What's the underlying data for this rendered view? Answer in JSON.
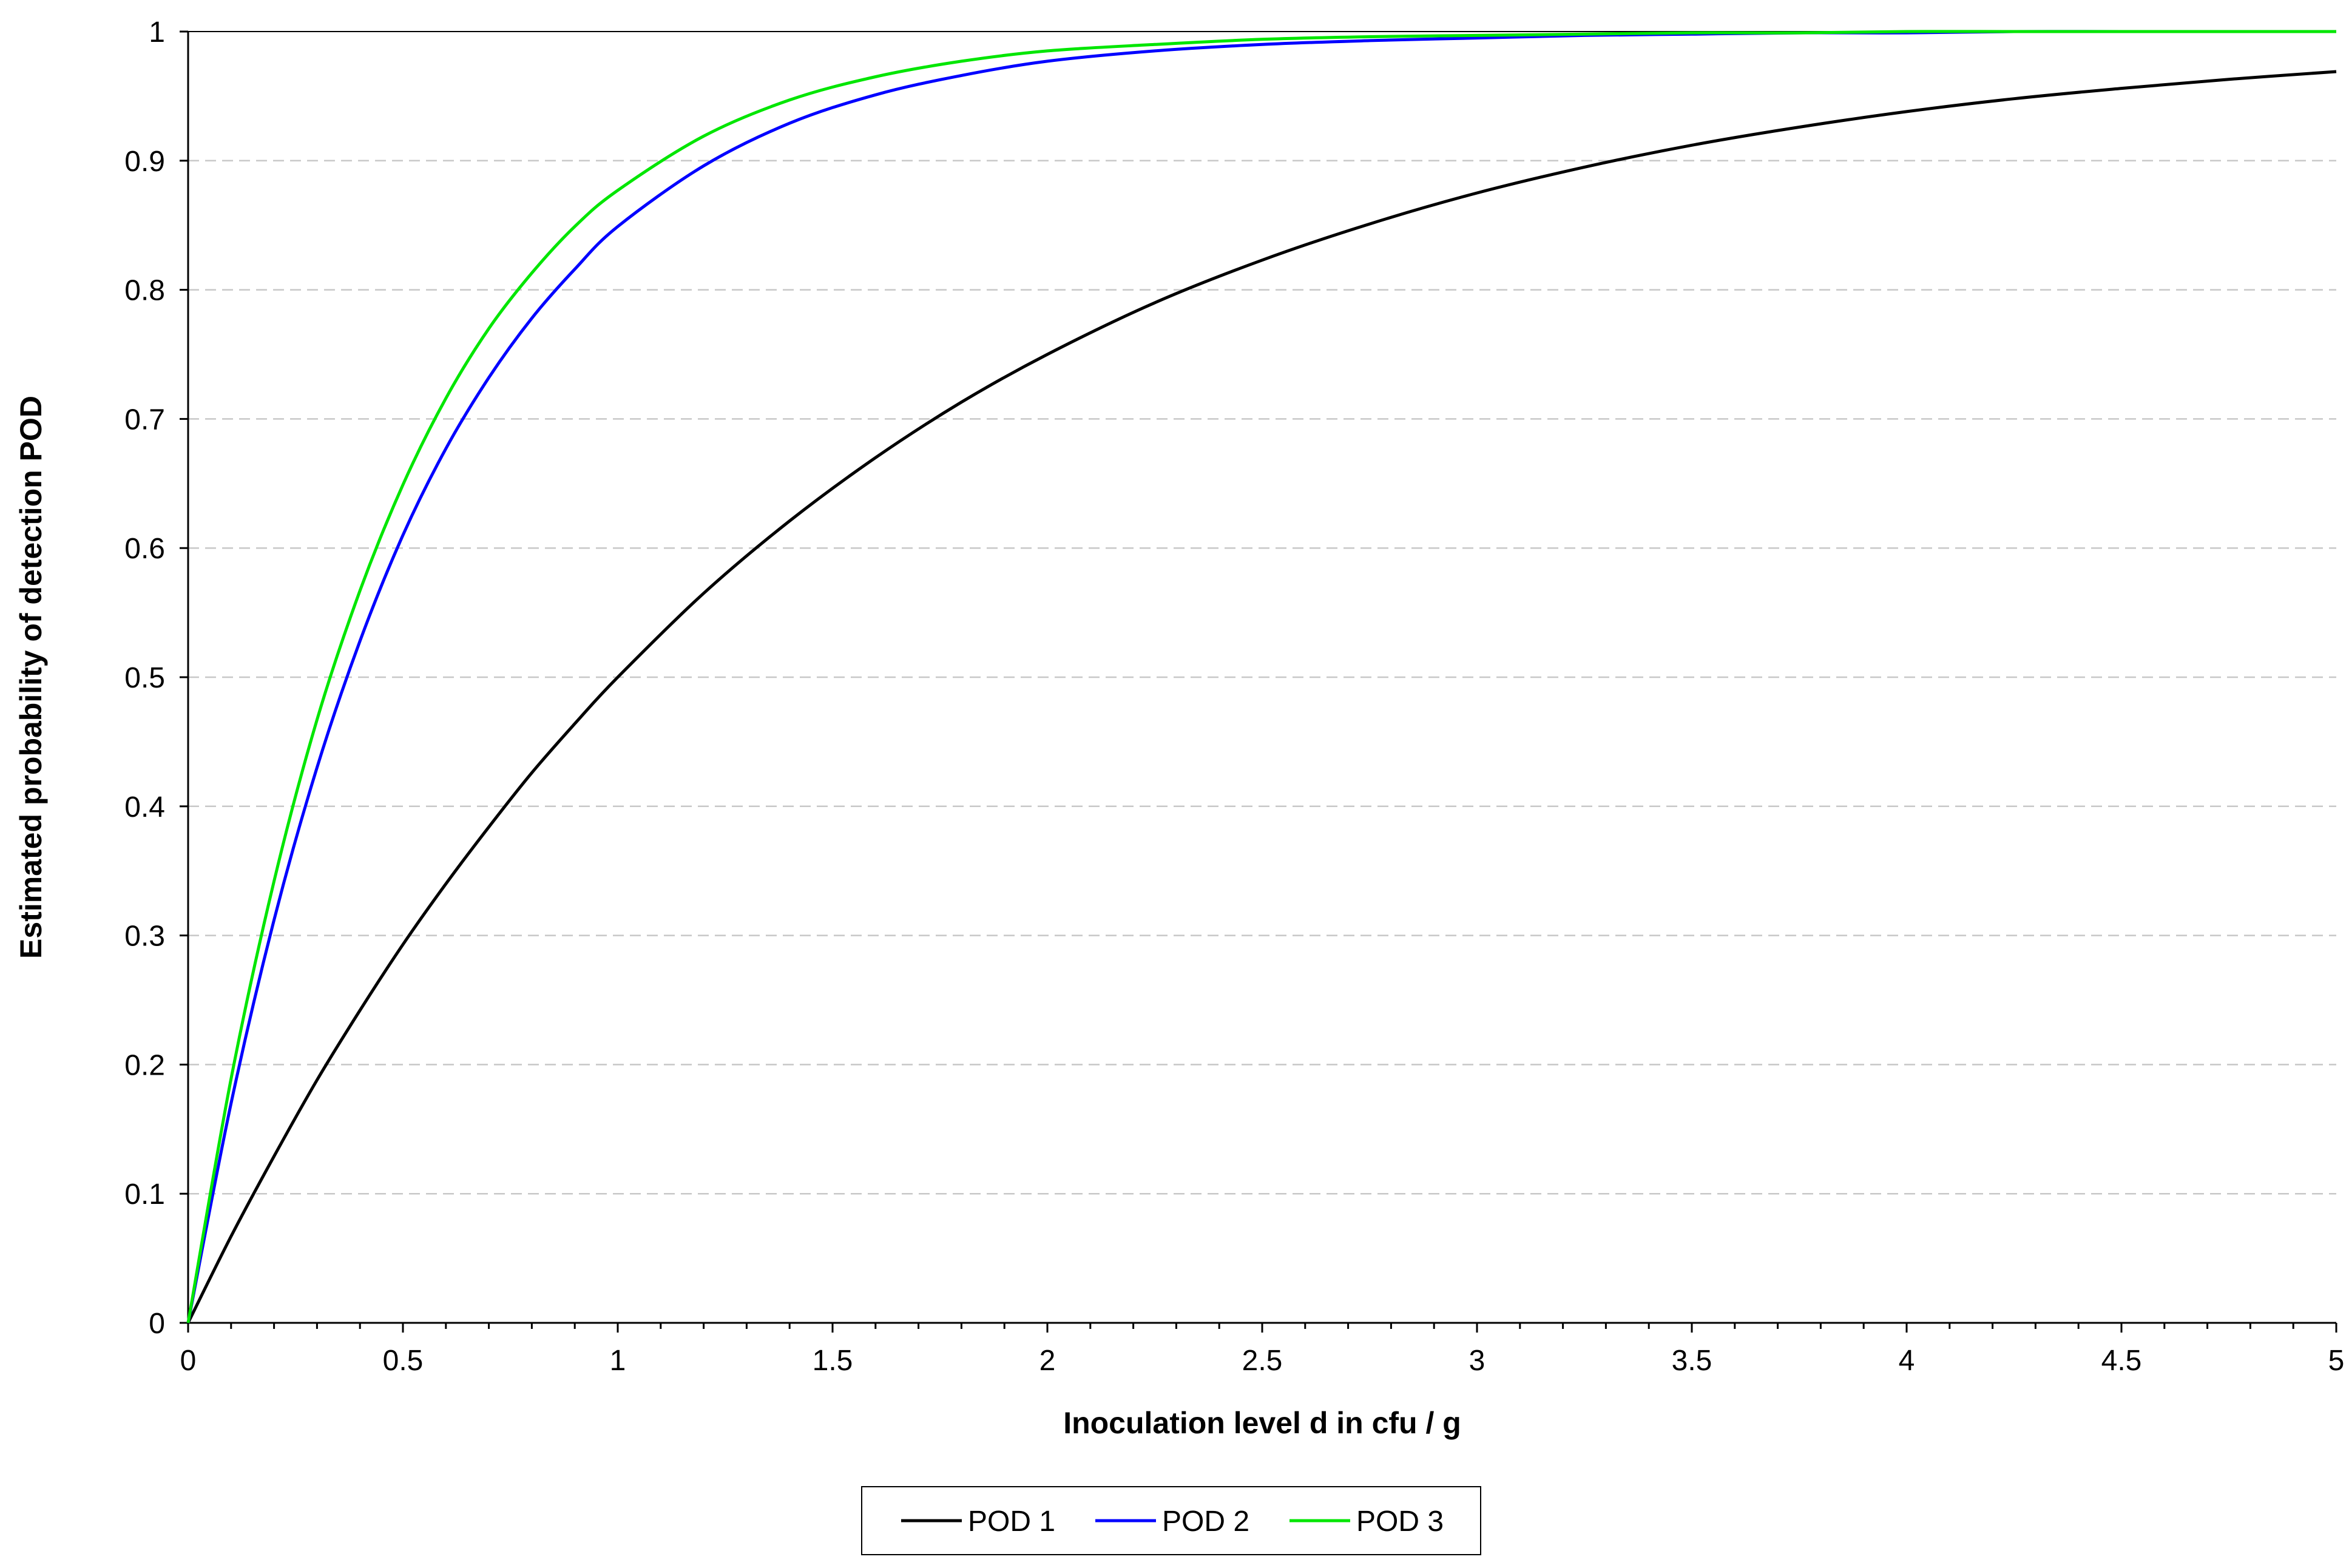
{
  "chart_data": {
    "type": "line",
    "title": "",
    "xlabel": "Inoculation level d  in cfu / g",
    "ylabel": "Estimated probability of detection  POD",
    "xlim": [
      0,
      5
    ],
    "ylim": [
      0,
      1
    ],
    "x_ticks": [
      "0",
      "0.5",
      "1",
      "1.5",
      "2",
      "2.5",
      "3",
      "3.5",
      "4",
      "4.5",
      "5"
    ],
    "y_ticks": [
      "0",
      "0.1",
      "0.2",
      "0.3",
      "0.4",
      "0.5",
      "0.6",
      "0.7",
      "0.8",
      "0.9",
      "1"
    ],
    "grid": "horizontal dashed",
    "legend_position": "bottom-center",
    "x": [
      0,
      0.1,
      0.2,
      0.3,
      0.4,
      0.5,
      0.6,
      0.7,
      0.8,
      0.9,
      1.0,
      1.2,
      1.4,
      1.6,
      1.8,
      2.0,
      2.25,
      2.5,
      2.75,
      3.0,
      3.25,
      3.5,
      3.75,
      4.0,
      4.25,
      4.5,
      4.75,
      5.0
    ],
    "series": [
      {
        "name": "POD 1",
        "color": "#000000",
        "values": [
          0,
          0.067,
          0.129,
          0.188,
          0.242,
          0.293,
          0.34,
          0.384,
          0.426,
          0.464,
          0.5,
          0.565,
          0.621,
          0.67,
          0.713,
          0.75,
          0.79,
          0.823,
          0.851,
          0.875,
          0.895,
          0.912,
          0.926,
          0.938,
          0.948,
          0.956,
          0.963,
          0.969
        ]
      },
      {
        "name": "POD 2",
        "color": "#0000ff",
        "values": [
          0,
          0.17,
          0.312,
          0.43,
          0.528,
          0.61,
          0.677,
          0.732,
          0.778,
          0.816,
          0.849,
          0.896,
          0.929,
          0.951,
          0.966,
          0.977,
          0.985,
          0.99,
          0.993,
          0.995,
          0.997,
          0.998,
          0.999,
          0.999,
          1.0,
          1.0,
          1.0,
          1.0
        ]
      },
      {
        "name": "POD 3",
        "color": "#00e600",
        "values": [
          0,
          0.189,
          0.342,
          0.467,
          0.567,
          0.649,
          0.716,
          0.77,
          0.813,
          0.849,
          0.877,
          0.919,
          0.947,
          0.965,
          0.977,
          0.985,
          0.99,
          0.994,
          0.996,
          0.997,
          0.998,
          0.999,
          0.999,
          1.0,
          1.0,
          1.0,
          1.0,
          1.0
        ]
      }
    ]
  }
}
